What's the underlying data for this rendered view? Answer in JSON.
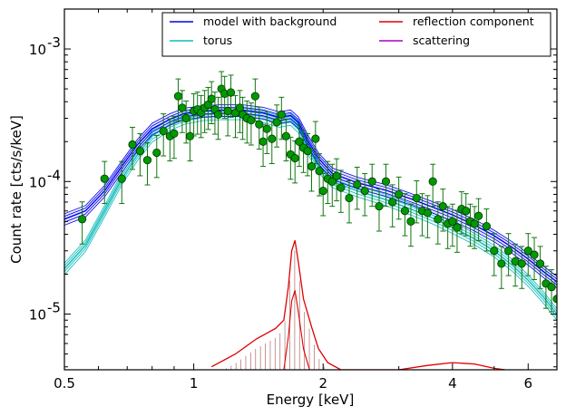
{
  "chart_data": {
    "type": "line",
    "xlabel": "Energy [keV]",
    "ylabel": "Count rate [cts/s/keV]",
    "xscale": "log",
    "yscale": "log",
    "xlim": [
      0.5,
      7.0
    ],
    "ylim": [
      3.8e-06,
      0.002
    ],
    "x_ticks": [
      {
        "value": 0.5,
        "label": "0.5"
      },
      {
        "value": 1,
        "label": "1"
      },
      {
        "value": 2,
        "label": "2"
      },
      {
        "value": 4,
        "label": "4"
      },
      {
        "value": 6,
        "label": "6"
      }
    ],
    "y_ticks": [
      {
        "value": 1e-05,
        "base": "10",
        "exp": "-5"
      },
      {
        "value": 0.0001,
        "base": "10",
        "exp": "-4"
      },
      {
        "value": 0.001,
        "base": "10",
        "exp": "-3"
      }
    ],
    "legend": {
      "placement": "top-right",
      "entries": [
        {
          "label": "model with background",
          "color": "#0000ee"
        },
        {
          "label": "reflection component",
          "color": "#dd0000"
        },
        {
          "label": "torus",
          "color": "#11bbbb"
        },
        {
          "label": "scattering",
          "color": "#aa00cc"
        }
      ]
    },
    "series": [
      {
        "name": "model with background",
        "color": "#0000ee",
        "x": [
          0.5,
          0.56,
          0.62,
          0.68,
          0.74,
          0.8,
          0.88,
          0.95,
          1.05,
          1.15,
          1.3,
          1.45,
          1.58,
          1.68,
          1.75,
          1.85,
          1.95,
          2.1,
          2.4,
          2.8,
          3.2,
          3.6,
          4.0,
          4.5,
          5.0,
          5.5,
          6.0,
          6.5,
          7.0
        ],
        "y": [
          5.2e-05,
          6e-05,
          8.5e-05,
          0.00013,
          0.00019,
          0.00025,
          0.000295,
          0.000325,
          0.00034,
          0.000345,
          0.000345,
          0.00033,
          0.000305,
          0.000315,
          0.00028,
          0.0002,
          0.00015,
          0.000115,
          9.8e-05,
          8.6e-05,
          7.4e-05,
          6.4e-05,
          5.6e-05,
          4.7e-05,
          3.9e-05,
          3.2e-05,
          2.6e-05,
          2.1e-05,
          1.75e-05
        ]
      },
      {
        "name": "torus",
        "color": "#11bbbb",
        "x": [
          0.5,
          0.56,
          0.62,
          0.68,
          0.74,
          0.8,
          0.88,
          0.95,
          1.05,
          1.15,
          1.3,
          1.45,
          1.58,
          1.68,
          1.75,
          1.85,
          1.95,
          2.1,
          2.4,
          2.8,
          3.2,
          3.6,
          4.0,
          4.5,
          5.0,
          5.5,
          6.0,
          6.5,
          7.0
        ],
        "y": [
          2.2e-05,
          3.3e-05,
          6e-05,
          0.000105,
          0.00016,
          0.00022,
          0.00027,
          0.0003,
          0.00032,
          0.000325,
          0.000325,
          0.00031,
          0.000285,
          0.000295,
          0.00026,
          0.000175,
          0.00013,
          0.0001,
          8.5e-05,
          7.3e-05,
          6.2e-05,
          5.3e-05,
          4.5e-05,
          3.7e-05,
          3e-05,
          2.35e-05,
          1.8e-05,
          1.35e-05,
          1e-05
        ]
      },
      {
        "name": "reflection component",
        "color": "#dd0000",
        "x": [
          1.1,
          1.25,
          1.4,
          1.55,
          1.62,
          1.66,
          1.69,
          1.72,
          1.75,
          1.8,
          1.88,
          1.95,
          2.05,
          2.2,
          3.0,
          3.5,
          4.0,
          4.5,
          5.0,
          5.3
        ],
        "y": [
          4e-06,
          5e-06,
          6.5e-06,
          7.8e-06,
          9e-06,
          1.6e-05,
          3e-05,
          3.6e-05,
          2.5e-05,
          1.3e-05,
          8e-06,
          5.5e-06,
          4.3e-06,
          3.8e-06,
          3.8e-06,
          4.1e-06,
          4.3e-06,
          4.2e-06,
          3.9e-06,
          3.8e-06
        ]
      },
      {
        "name": "scattering",
        "color": "#aa00cc",
        "x": [],
        "y": []
      }
    ],
    "data_points": {
      "color": "#009900",
      "x": [
        0.55,
        0.62,
        0.68,
        0.72,
        0.75,
        0.78,
        0.82,
        0.85,
        0.88,
        0.9,
        0.92,
        0.94,
        0.96,
        0.98,
        1.0,
        1.02,
        1.04,
        1.06,
        1.08,
        1.1,
        1.12,
        1.14,
        1.16,
        1.18,
        1.2,
        1.22,
        1.25,
        1.28,
        1.3,
        1.33,
        1.36,
        1.39,
        1.42,
        1.45,
        1.48,
        1.52,
        1.56,
        1.6,
        1.64,
        1.68,
        1.72,
        1.76,
        1.8,
        1.84,
        1.88,
        1.92,
        1.96,
        2.0,
        2.05,
        2.1,
        2.15,
        2.2,
        2.3,
        2.4,
        2.5,
        2.6,
        2.7,
        2.8,
        2.9,
        3.0,
        3.1,
        3.2,
        3.3,
        3.4,
        3.5,
        3.6,
        3.7,
        3.8,
        3.9,
        4.0,
        4.1,
        4.2,
        4.3,
        4.4,
        4.5,
        4.6,
        4.8,
        5.0,
        5.2,
        5.4,
        5.6,
        5.8,
        6.0,
        6.2,
        6.4,
        6.6,
        6.8,
        7.0
      ],
      "y": [
        5.2e-05,
        0.000105,
        0.000105,
        0.00019,
        0.00017,
        0.000145,
        0.000165,
        0.00024,
        0.00022,
        0.00023,
        0.00044,
        0.00036,
        0.0003,
        0.00022,
        0.00034,
        0.00035,
        0.00033,
        0.00036,
        0.00038,
        0.00042,
        0.00035,
        0.00032,
        0.0005,
        0.00046,
        0.00034,
        0.00047,
        0.00033,
        0.00036,
        0.00032,
        0.0003,
        0.00029,
        0.00044,
        0.00027,
        0.0002,
        0.00025,
        0.00021,
        0.00028,
        0.00032,
        0.00022,
        0.00016,
        0.00015,
        0.0002,
        0.00018,
        0.00017,
        0.00013,
        0.00021,
        0.00012,
        8.5e-05,
        0.000105,
        0.0001,
        0.00011,
        9e-05,
        7.5e-05,
        9.5e-05,
        8.5e-05,
        0.0001,
        6.5e-05,
        0.0001,
        7e-05,
        8e-05,
        6e-05,
        5e-05,
        7.5e-05,
        6e-05,
        5.8e-05,
        0.0001,
        5.2e-05,
        6.5e-05,
        4.8e-05,
        5e-05,
        4.5e-05,
        6.2e-05,
        6e-05,
        5e-05,
        4.8e-05,
        5.5e-05,
        4.6e-05,
        3e-05,
        2.4e-05,
        3e-05,
        2.5e-05,
        2.4e-05,
        3e-05,
        2.8e-05,
        2.4e-05,
        1.7e-05,
        1.6e-05,
        1.3e-05
      ],
      "err_frac": 0.35
    }
  }
}
